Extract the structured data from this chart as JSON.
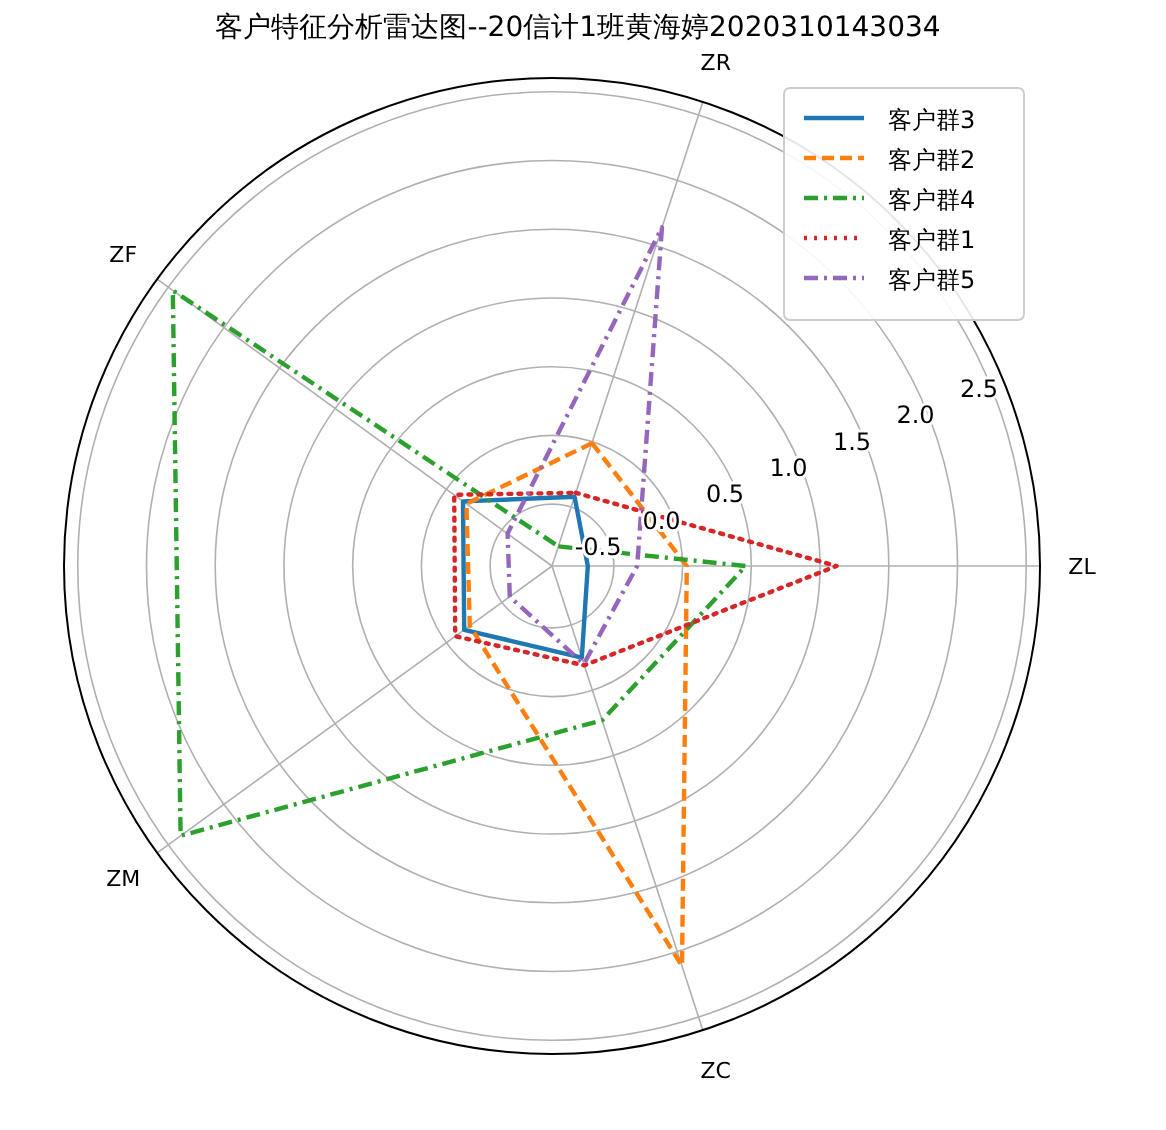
{
  "chart_data": {
    "type": "radar",
    "title": "客户特征分析雷达图--20信计1班黄海婷2020310143034",
    "categories": [
      "ZR",
      "ZL",
      "ZC",
      "ZM",
      "ZF"
    ],
    "ylim": [
      -0.95,
      2.6
    ],
    "yticks": [
      -0.5,
      {
        "value": 0,
        "label": "0.0"
      },
      0.5,
      {
        "value": 1,
        "label": "1.0"
      },
      1.5,
      {
        "value": 2,
        "label": "2.0"
      },
      2.5
    ],
    "grid": true,
    "legend": "top right",
    "series": [
      {
        "name": "客户群3",
        "color": "#1f77b4",
        "line_style": "solid",
        "values": [
          -0.42,
          -0.69,
          -0.25,
          -0.16,
          -0.15
        ]
      },
      {
        "name": "客户群2",
        "color": "#ff7f0e",
        "line_style": "dashed",
        "values": [
          -0.01,
          0.03,
          2.11,
          -0.21,
          -0.18
        ]
      },
      {
        "name": "客户群4",
        "color": "#2ca02c",
        "line_style": "dashdot",
        "values": [
          -0.8,
          0.46,
          0.23,
          2.39,
          2.46
        ]
      },
      {
        "name": "客户群1",
        "color": "#d62728",
        "line_style": "dotted",
        "values": [
          -0.39,
          1.12,
          -0.19,
          -0.08,
          -0.07
        ]
      },
      {
        "name": "客户群5",
        "color": "#9467bd",
        "line_style": "dashdot",
        "values": [
          1.64,
          -0.33,
          -0.2,
          -0.57,
          -0.55
        ]
      }
    ]
  }
}
